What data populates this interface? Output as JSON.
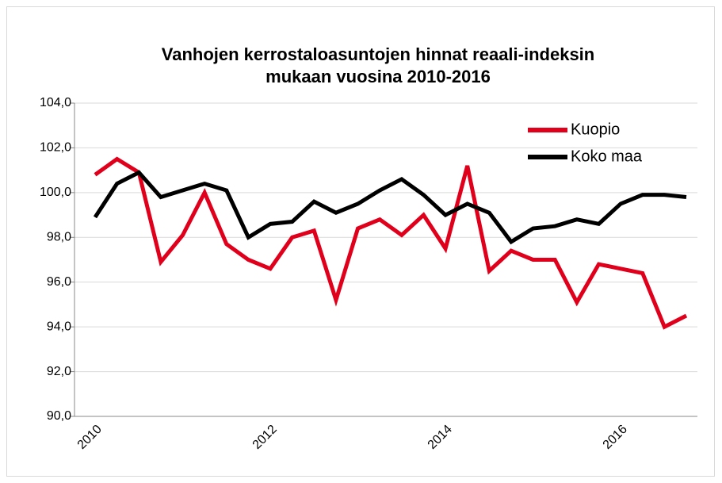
{
  "chart_data": {
    "type": "line",
    "title": "Vanhojen kerrostaloasuntojen hinnat reaali-indeksin mukaan vuosina 2010-2016",
    "categories": [
      "2010",
      null,
      null,
      null,
      null,
      null,
      null,
      null,
      "2012",
      null,
      null,
      null,
      null,
      null,
      null,
      null,
      "2014",
      null,
      null,
      null,
      null,
      null,
      null,
      null,
      "2016",
      null,
      null,
      null
    ],
    "series": [
      {
        "name": "Kuopio",
        "color": "#e0001b",
        "values": [
          100.8,
          101.5,
          100.9,
          96.9,
          98.1,
          100.0,
          97.7,
          97.0,
          96.6,
          98.0,
          98.3,
          95.2,
          98.4,
          98.8,
          98.1,
          99.0,
          97.5,
          101.2,
          96.5,
          97.4,
          97.0,
          97.0,
          95.1,
          96.8,
          96.6,
          96.4,
          94.0,
          94.5
        ]
      },
      {
        "name": "Koko maa",
        "color": "#000000",
        "values": [
          98.9,
          100.4,
          100.9,
          99.8,
          100.1,
          100.4,
          100.1,
          98.0,
          98.6,
          98.7,
          99.6,
          99.1,
          99.5,
          100.1,
          100.6,
          99.9,
          99.0,
          99.5,
          99.1,
          97.8,
          98.4,
          98.5,
          98.8,
          98.6,
          99.5,
          99.9,
          99.9,
          99.8
        ]
      }
    ],
    "ylim": [
      90,
      104
    ],
    "yticks": [
      {
        "value": 90,
        "label": "90,0"
      },
      {
        "value": 92,
        "label": "92,0"
      },
      {
        "value": 94,
        "label": "94,0"
      },
      {
        "value": 96,
        "label": "96,0"
      },
      {
        "value": 98,
        "label": "98,0"
      },
      {
        "value": 100,
        "label": "100,0"
      },
      {
        "value": 102,
        "label": "102,0"
      },
      {
        "value": 104,
        "label": "104,0"
      }
    ],
    "grid": true,
    "legend": "upper right"
  }
}
